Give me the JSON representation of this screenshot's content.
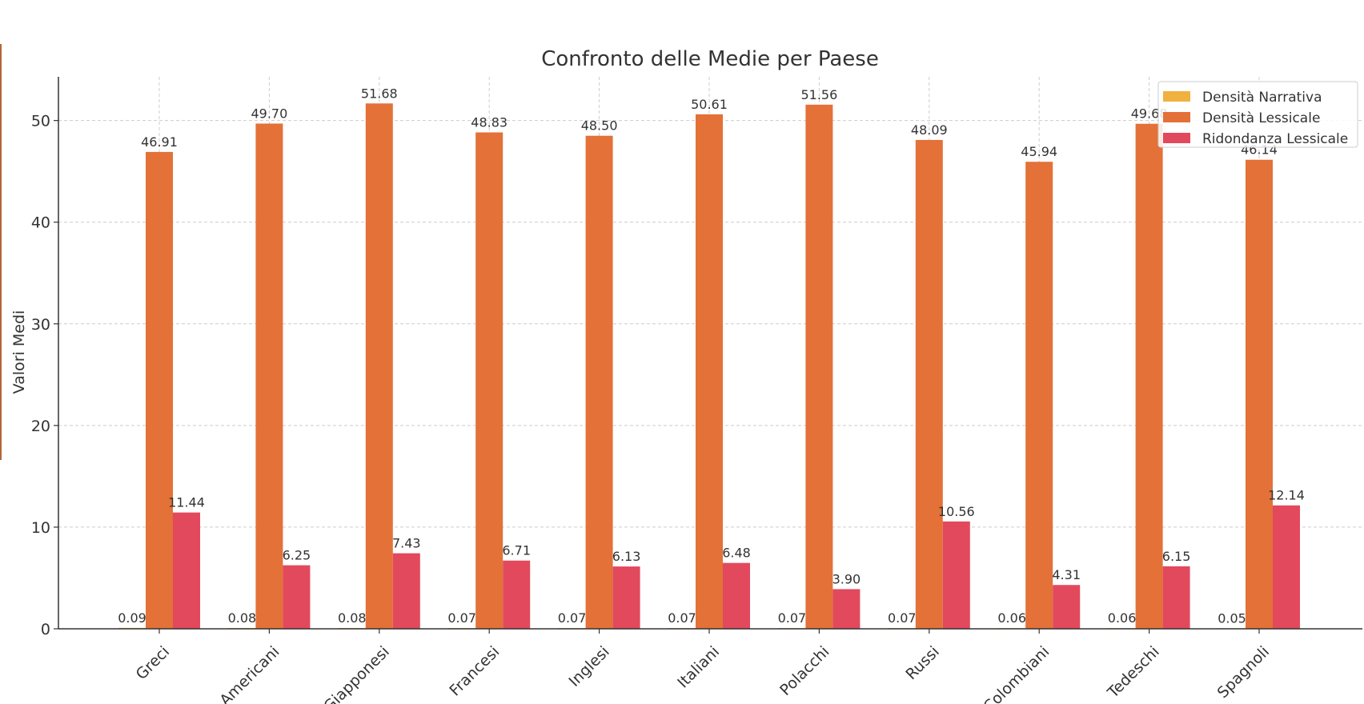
{
  "chart_data": {
    "type": "bar",
    "title": "Confronto delle Medie per Paese",
    "xlabel": "",
    "ylabel": "Valori Medi",
    "ylim": [
      0,
      54.3
    ],
    "yticks": [
      0,
      10,
      20,
      30,
      40,
      50
    ],
    "grid": true,
    "legend_position": "top-right",
    "categories": [
      "Greci",
      "Americani",
      "Giapponesi",
      "Francesi",
      "Inglesi",
      "Italiani",
      "Polacchi",
      "Russi",
      "Colombiani",
      "Tedeschi",
      "Spagnoli"
    ],
    "series": [
      {
        "name": "Densità Narrativa",
        "color": "#f0b13f",
        "values": [
          0.09,
          0.08,
          0.08,
          0.07,
          0.07,
          0.07,
          0.07,
          0.07,
          0.06,
          0.06,
          0.05
        ],
        "labels": [
          "0.09",
          "0.08",
          "0.08",
          "0.07",
          "0.07",
          "0.07",
          "0.07",
          "0.07",
          "0.06",
          "0.06",
          "0.05"
        ]
      },
      {
        "name": "Densità Lessicale",
        "color": "#e37138",
        "values": [
          46.91,
          49.7,
          51.68,
          48.83,
          48.5,
          50.61,
          51.56,
          48.09,
          45.94,
          49.68,
          46.14
        ],
        "labels": [
          "46.91",
          "49.70",
          "51.68",
          "48.83",
          "48.50",
          "50.61",
          "51.56",
          "48.09",
          "45.94",
          "49.68",
          "46.14"
        ]
      },
      {
        "name": "Ridondanza Lessicale",
        "color": "#e2495c",
        "values": [
          11.44,
          6.25,
          7.43,
          6.71,
          6.13,
          6.48,
          3.9,
          10.56,
          4.31,
          6.15,
          12.14
        ],
        "labels": [
          "11.44",
          "6.25",
          "7.43",
          "6.71",
          "6.13",
          "6.48",
          "3.90",
          "10.56",
          "4.31",
          "6.15",
          "12.14"
        ]
      }
    ]
  }
}
